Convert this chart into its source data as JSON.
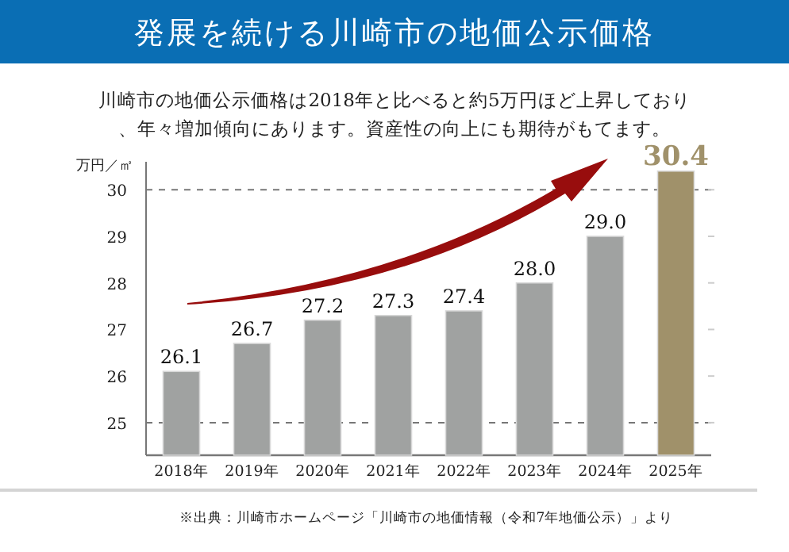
{
  "chart_data": {
    "type": "bar",
    "title": "発展を続ける川崎市の地価公示価格",
    "subtitle": "川崎市の地価公示価格は2018年と比べると約5万円ほど上昇しており、年々増加傾向にあります。資産性の向上にも期待がもてます。",
    "ylabel": "万円／㎡",
    "annotations": [
      "※出典：川崎市ホームページ「川崎市の地価情報（令和7年地価公示）」より"
    ],
    "categories": [
      "2018年",
      "2019年",
      "2020年",
      "2021年",
      "2022年",
      "2023年",
      "2024年",
      "2025年"
    ],
    "values": [
      26.1,
      26.7,
      27.2,
      27.3,
      27.4,
      28.0,
      29.0,
      30.4
    ],
    "colors": [
      "#a0a2a1",
      "#a0a2a1",
      "#a0a2a1",
      "#a0a2a1",
      "#a0a2a1",
      "#a0a2a1",
      "#a0a2a1",
      "#a0916a"
    ],
    "value_labels": [
      "26.1",
      "26.7",
      "27.2",
      "27.3",
      "27.4",
      "28.0",
      "29.0",
      "30.4"
    ],
    "ylim": [
      24.3,
      30.6
    ],
    "yticks": [
      25,
      26,
      27,
      28,
      29,
      30
    ],
    "ref_lines": [
      {
        "axis": "y",
        "value": 25,
        "color": "#777777",
        "line_style": "dashed"
      },
      {
        "axis": "y",
        "value": 30,
        "color": "#777777",
        "line_style": "dashed"
      }
    ],
    "grid": false
  }
}
